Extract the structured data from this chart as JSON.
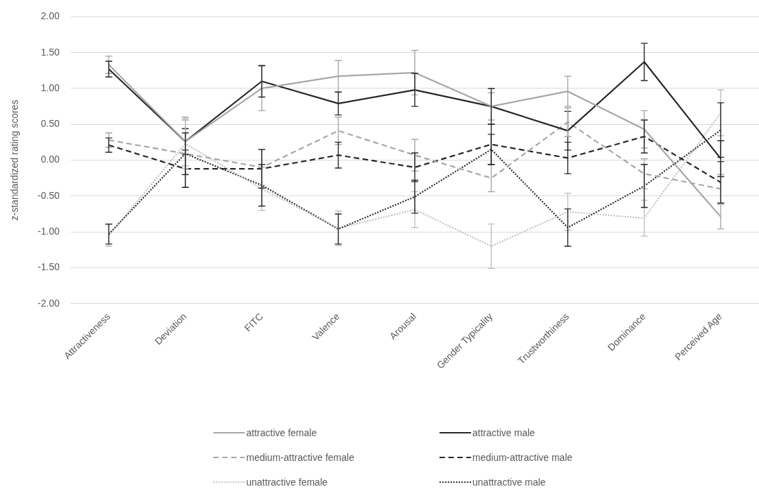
{
  "chart_data": {
    "type": "line",
    "ylabel": "z-standardized rating scores",
    "categories": [
      "Attractiveness",
      "Deviation",
      "FITC",
      "Valence",
      "Arousal",
      "Gender Typicality",
      "Trustworthiness",
      "Dominance",
      "Perceived Age"
    ],
    "series": [
      {
        "name": "attractive female",
        "color": "#a6a6a6",
        "line_style": "solid",
        "values": [
          1.33,
          0.26,
          1.0,
          1.17,
          1.22,
          0.75,
          0.96,
          0.43,
          -0.79
        ],
        "errors": [
          0.12,
          0.34,
          0.31,
          0.22,
          0.31,
          0.19,
          0.21,
          0.26,
          0.17
        ]
      },
      {
        "name": "attractive male",
        "color": "#262626",
        "line_style": "solid",
        "values": [
          1.27,
          0.26,
          1.1,
          0.79,
          0.98,
          0.75,
          0.41,
          1.37,
          0.02
        ],
        "errors": [
          0.11,
          0.18,
          0.22,
          0.16,
          0.23,
          0.25,
          0.27,
          0.26,
          0.25
        ]
      },
      {
        "name": "medium-attractive female",
        "color": "#a6a6a6",
        "line_style": "dashed",
        "values": [
          0.28,
          0.09,
          -0.1,
          0.41,
          0.07,
          -0.25,
          0.53,
          -0.19,
          -0.4
        ],
        "errors": [
          0.1,
          0.47,
          0.25,
          0.19,
          0.22,
          0.19,
          0.2,
          0.21,
          0.2
        ]
      },
      {
        "name": "medium-attractive male",
        "color": "#262626",
        "line_style": "dashed",
        "values": [
          0.21,
          -0.12,
          -0.12,
          0.07,
          -0.1,
          0.22,
          0.03,
          0.33,
          -0.31
        ],
        "errors": [
          0.1,
          0.26,
          0.27,
          0.18,
          0.2,
          0.28,
          0.22,
          0.23,
          0.29
        ]
      },
      {
        "name": "unattractive female",
        "color": "#bfbfbf",
        "line_style": "dotted",
        "values": [
          -1.05,
          0.23,
          -0.4,
          -0.95,
          -0.69,
          -1.2,
          -0.72,
          -0.81,
          0.66
        ],
        "errors": [
          0.15,
          0.35,
          0.3,
          0.24,
          0.25,
          0.31,
          0.26,
          0.25,
          0.32
        ]
      },
      {
        "name": "unattractive male",
        "color": "#262626",
        "line_style": "dotted",
        "values": [
          -1.03,
          0.09,
          -0.35,
          -0.96,
          -0.51,
          0.15,
          -0.94,
          -0.36,
          0.42
        ],
        "errors": [
          0.14,
          0.29,
          0.29,
          0.21,
          0.23,
          0.21,
          0.26,
          0.3,
          0.38
        ]
      }
    ],
    "ylim": [
      -2,
      2
    ],
    "yticks": [
      {
        "value": -2,
        "label": "-2.00"
      },
      {
        "value": -1.5,
        "label": "-1.50"
      },
      {
        "value": -1,
        "label": "-1.00"
      },
      {
        "value": -0.5,
        "label": "-0.50"
      },
      {
        "value": 0,
        "label": "0.00"
      },
      {
        "value": 0.5,
        "label": "0.50"
      },
      {
        "value": 1,
        "label": "1.00"
      },
      {
        "value": 1.5,
        "label": "1.50"
      },
      {
        "value": 2,
        "label": "2.00"
      }
    ],
    "grid": "y",
    "legend": "bottom",
    "marker": "none"
  }
}
